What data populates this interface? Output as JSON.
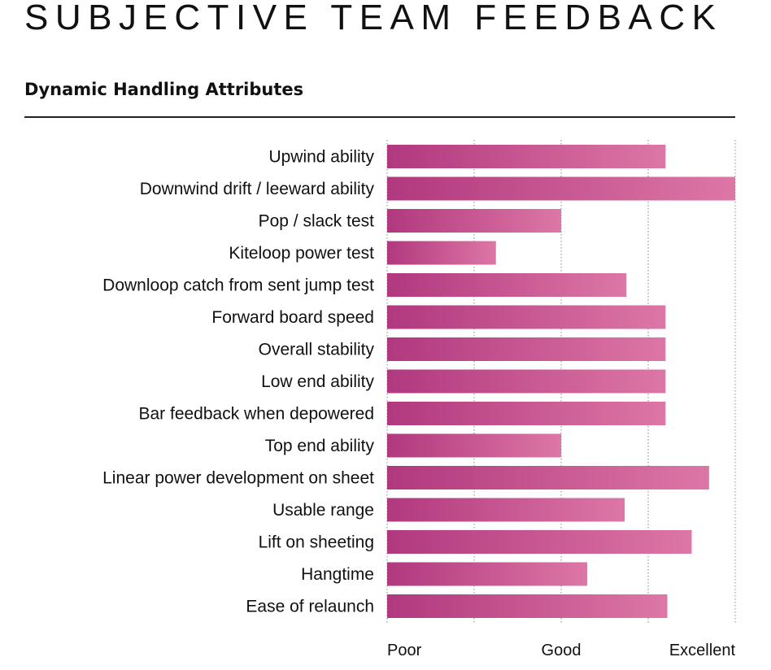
{
  "page": {
    "title": "SUBJECTIVE TEAM FEEDBACK",
    "subtitle": "Dynamic Handling Attributes"
  },
  "colors": {
    "bar_start": "#b1387e",
    "bar_end": "#dd77a6",
    "text": "#111111",
    "grid": "#888888"
  },
  "chart_data": {
    "type": "bar",
    "orientation": "horizontal",
    "categories": [
      "Upwind ability",
      "Downwind drift / leeward ability",
      "Pop / slack test",
      "Kiteloop power test",
      "Downloop catch from sent jump test",
      "Forward board speed",
      "Overall stability",
      "Low end ability",
      "Bar feedback when depowered",
      "Top end ability",
      "Linear power development on sheet",
      "Usable range",
      "Lift on sheeting",
      "Hangtime",
      "Ease of relaunch"
    ],
    "values": [
      3.2,
      4.0,
      2.0,
      1.25,
      2.75,
      3.2,
      3.2,
      3.2,
      3.2,
      2.0,
      3.7,
      2.73,
      3.5,
      2.3,
      3.22
    ],
    "xlim": [
      0,
      4
    ],
    "x_ticks": [
      {
        "value": 0,
        "label": "Poor"
      },
      {
        "value": 2,
        "label": "Good"
      },
      {
        "value": 4,
        "label": "Excellent"
      }
    ],
    "gridlines": [
      0,
      1,
      2,
      3,
      4
    ],
    "grid": true,
    "gridline_style": "dotted"
  }
}
